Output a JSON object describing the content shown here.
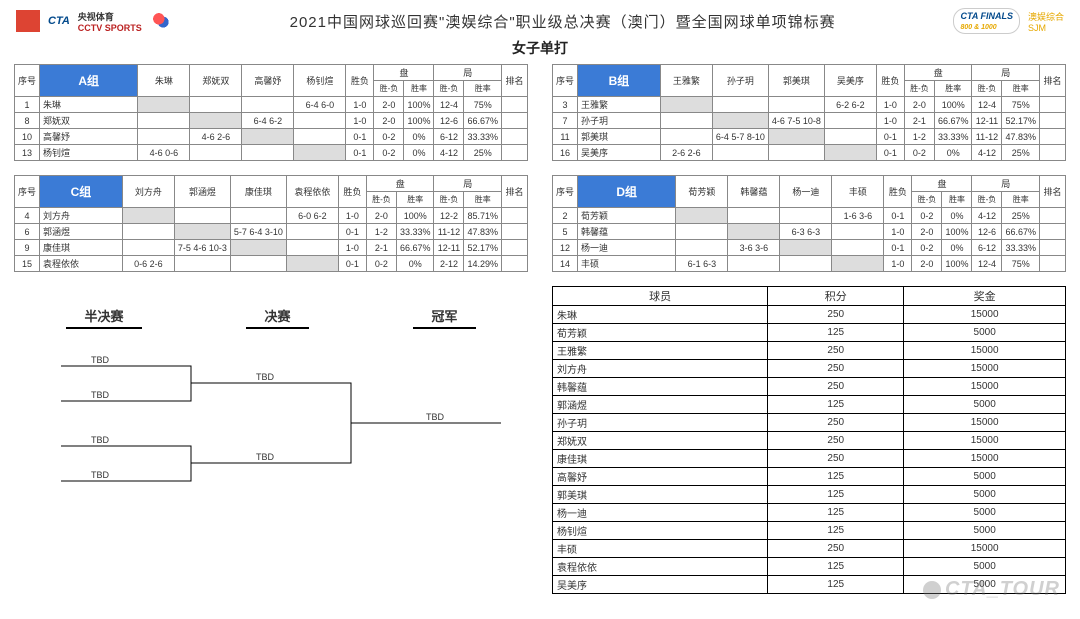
{
  "header": {
    "title": "2021中国网球巡回赛\"澳娱综合\"职业级总决赛（澳门）暨全国网球单项锦标赛",
    "subtitle": "女子单打",
    "logo_cta": "CTA",
    "logo_cctv_cn": "央视体育",
    "logo_cctv_en": "CCTV SPORTS",
    "logo_finals": "CTA FINALS",
    "logo_finals_sub": "800 & 1000",
    "logo_sjm_cn": "澳娱综合",
    "logo_sjm_en": "SJM"
  },
  "group_cols": {
    "seq": "序号",
    "wl": "胜负",
    "pan": "盘",
    "ju": "局",
    "rank": "排名",
    "sub_wl": "胜-负",
    "sub_rate": "胜率"
  },
  "groups": [
    {
      "label": "A组",
      "players": [
        "朱琳",
        "郑妩双",
        "高馨妤",
        "杨钊煊"
      ],
      "rows": [
        {
          "seq": "1",
          "name": "朱琳",
          "scores": [
            "",
            "",
            "",
            "6-4 6-0"
          ],
          "wl": "1-0",
          "pan_wl": "2-0",
          "pan_rate": "100%",
          "ju_wl": "12-4",
          "ju_rate": "75%",
          "rank": ""
        },
        {
          "seq": "8",
          "name": "郑妩双",
          "scores": [
            "",
            "",
            "6-4 6-2",
            ""
          ],
          "wl": "1-0",
          "pan_wl": "2-0",
          "pan_rate": "100%",
          "ju_wl": "12-6",
          "ju_rate": "66.67%",
          "rank": ""
        },
        {
          "seq": "10",
          "name": "高馨妤",
          "scores": [
            "",
            "4-6 2-6",
            "",
            ""
          ],
          "wl": "0-1",
          "pan_wl": "0-2",
          "pan_rate": "0%",
          "ju_wl": "6-12",
          "ju_rate": "33.33%",
          "rank": ""
        },
        {
          "seq": "13",
          "name": "杨钊煊",
          "scores": [
            "4-6 0-6",
            "",
            "",
            ""
          ],
          "wl": "0-1",
          "pan_wl": "0-2",
          "pan_rate": "0%",
          "ju_wl": "4-12",
          "ju_rate": "25%",
          "rank": ""
        }
      ]
    },
    {
      "label": "B组",
      "players": [
        "王雅繁",
        "孙子玥",
        "郭美琪",
        "吴美序"
      ],
      "rows": [
        {
          "seq": "3",
          "name": "王雅繁",
          "scores": [
            "",
            "",
            "",
            "6-2 6-2"
          ],
          "wl": "1-0",
          "pan_wl": "2-0",
          "pan_rate": "100%",
          "ju_wl": "12-4",
          "ju_rate": "75%",
          "rank": ""
        },
        {
          "seq": "7",
          "name": "孙子玥",
          "scores": [
            "",
            "",
            "4-6 7-5 10-8",
            ""
          ],
          "wl": "1-0",
          "pan_wl": "2-1",
          "pan_rate": "66.67%",
          "ju_wl": "12-11",
          "ju_rate": "52.17%",
          "rank": ""
        },
        {
          "seq": "11",
          "name": "郭美琪",
          "scores": [
            "",
            "6-4 5-7 8-10",
            "",
            ""
          ],
          "wl": "0-1",
          "pan_wl": "1-2",
          "pan_rate": "33.33%",
          "ju_wl": "11-12",
          "ju_rate": "47.83%",
          "rank": ""
        },
        {
          "seq": "16",
          "name": "吴美序",
          "scores": [
            "2-6 2-6",
            "",
            "",
            ""
          ],
          "wl": "0-1",
          "pan_wl": "0-2",
          "pan_rate": "0%",
          "ju_wl": "4-12",
          "ju_rate": "25%",
          "rank": ""
        }
      ]
    },
    {
      "label": "C组",
      "players": [
        "刘方舟",
        "郭涵煜",
        "康佳琪",
        "袁程依依"
      ],
      "rows": [
        {
          "seq": "4",
          "name": "刘方舟",
          "scores": [
            "",
            "",
            "",
            "6-0 6-2"
          ],
          "wl": "1-0",
          "pan_wl": "2-0",
          "pan_rate": "100%",
          "ju_wl": "12-2",
          "ju_rate": "85.71%",
          "rank": ""
        },
        {
          "seq": "6",
          "name": "郭涵煜",
          "scores": [
            "",
            "",
            "5-7 6-4 3-10",
            ""
          ],
          "wl": "0-1",
          "pan_wl": "1-2",
          "pan_rate": "33.33%",
          "ju_wl": "11-12",
          "ju_rate": "47.83%",
          "rank": ""
        },
        {
          "seq": "9",
          "name": "康佳琪",
          "scores": [
            "",
            "7-5 4-6 10-3",
            "",
            ""
          ],
          "wl": "1-0",
          "pan_wl": "2-1",
          "pan_rate": "66.67%",
          "ju_wl": "12-11",
          "ju_rate": "52.17%",
          "rank": ""
        },
        {
          "seq": "15",
          "name": "袁程依依",
          "scores": [
            "0-6 2-6",
            "",
            "",
            ""
          ],
          "wl": "0-1",
          "pan_wl": "0-2",
          "pan_rate": "0%",
          "ju_wl": "2-12",
          "ju_rate": "14.29%",
          "rank": ""
        }
      ]
    },
    {
      "label": "D组",
      "players": [
        "荀芳颖",
        "韩馨蕴",
        "杨一迪",
        "丰硕"
      ],
      "rows": [
        {
          "seq": "2",
          "name": "荀芳颖",
          "scores": [
            "",
            "",
            "",
            "1-6 3-6"
          ],
          "wl": "0-1",
          "pan_wl": "0-2",
          "pan_rate": "0%",
          "ju_wl": "4-12",
          "ju_rate": "25%",
          "rank": ""
        },
        {
          "seq": "5",
          "name": "韩馨蕴",
          "scores": [
            "",
            "",
            "6-3 6-3",
            ""
          ],
          "wl": "1-0",
          "pan_wl": "2-0",
          "pan_rate": "100%",
          "ju_wl": "12-6",
          "ju_rate": "66.67%",
          "rank": ""
        },
        {
          "seq": "12",
          "name": "杨一迪",
          "scores": [
            "",
            "3-6 3-6",
            "",
            ""
          ],
          "wl": "0-1",
          "pan_wl": "0-2",
          "pan_rate": "0%",
          "ju_wl": "6-12",
          "ju_rate": "33.33%",
          "rank": ""
        },
        {
          "seq": "14",
          "name": "丰硕",
          "scores": [
            "6-1 6-3",
            "",
            "",
            ""
          ],
          "wl": "1-0",
          "pan_wl": "2-0",
          "pan_rate": "100%",
          "ju_wl": "12-4",
          "ju_rate": "75%",
          "rank": ""
        }
      ]
    }
  ],
  "bracket": {
    "h_semi": "半决赛",
    "h_final": "决赛",
    "h_champ": "冠军",
    "tbd": "TBD"
  },
  "ranking": {
    "h_player": "球员",
    "h_points": "积分",
    "h_prize": "奖金",
    "rows": [
      {
        "p": "朱琳",
        "pts": "250",
        "prize": "15000"
      },
      {
        "p": "荀芳颖",
        "pts": "125",
        "prize": "5000"
      },
      {
        "p": "王雅繁",
        "pts": "250",
        "prize": "15000"
      },
      {
        "p": "刘方舟",
        "pts": "250",
        "prize": "15000"
      },
      {
        "p": "韩馨蕴",
        "pts": "250",
        "prize": "15000"
      },
      {
        "p": "郭涵煜",
        "pts": "125",
        "prize": "5000"
      },
      {
        "p": "孙子玥",
        "pts": "250",
        "prize": "15000"
      },
      {
        "p": "郑妩双",
        "pts": "250",
        "prize": "15000"
      },
      {
        "p": "康佳琪",
        "pts": "250",
        "prize": "15000"
      },
      {
        "p": "高馨妤",
        "pts": "125",
        "prize": "5000"
      },
      {
        "p": "郭美琪",
        "pts": "125",
        "prize": "5000"
      },
      {
        "p": "杨一迪",
        "pts": "125",
        "prize": "5000"
      },
      {
        "p": "杨钊煊",
        "pts": "125",
        "prize": "5000"
      },
      {
        "p": "丰硕",
        "pts": "250",
        "prize": "15000"
      },
      {
        "p": "袁程依依",
        "pts": "125",
        "prize": "5000"
      },
      {
        "p": "吴美序",
        "pts": "125",
        "prize": "5000"
      }
    ]
  },
  "watermark": "CTA_TOUR"
}
